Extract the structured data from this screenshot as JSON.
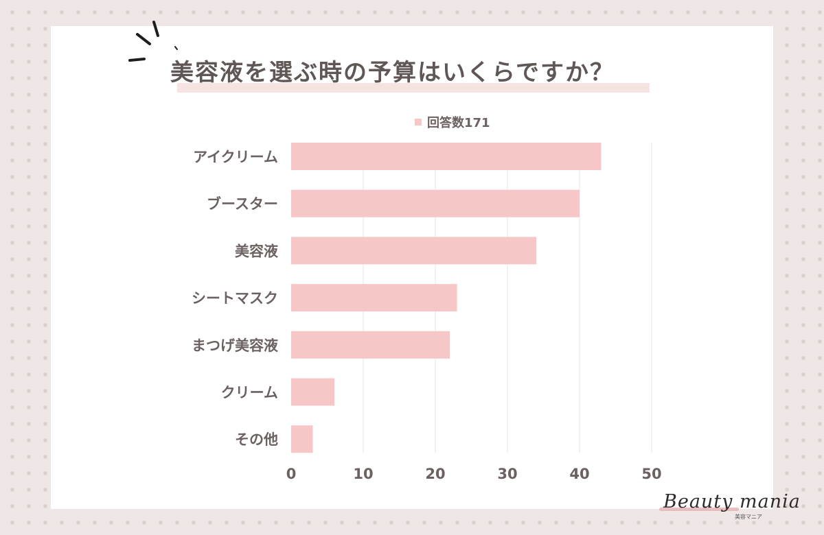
{
  "page": {
    "title": "美容液を選ぶ時の予算はいくらですか？",
    "brand_name": "Beauty mania",
    "brand_tagline": "美容マニア"
  },
  "chart_data": {
    "type": "bar",
    "orientation": "horizontal",
    "title": "美容液を選ぶ時の予算はいくらですか？",
    "categories": [
      "アイクリーム",
      "ブースター",
      "美容液",
      "シートマスク",
      "まつげ美容液",
      "クリーム",
      "その他"
    ],
    "series": [
      {
        "name": "回答数171",
        "values": [
          43,
          40,
          34,
          23,
          22,
          6,
          3
        ],
        "color": "#f7c6c7"
      }
    ],
    "xlim": [
      0,
      50
    ],
    "x_ticks": [
      0,
      10,
      20,
      30,
      40,
      50
    ],
    "grid": true,
    "legend_position": "top-center",
    "colors": {
      "bar": "#f7c6c7",
      "text": "#6a6160",
      "grid": "#e6e6e6"
    }
  }
}
